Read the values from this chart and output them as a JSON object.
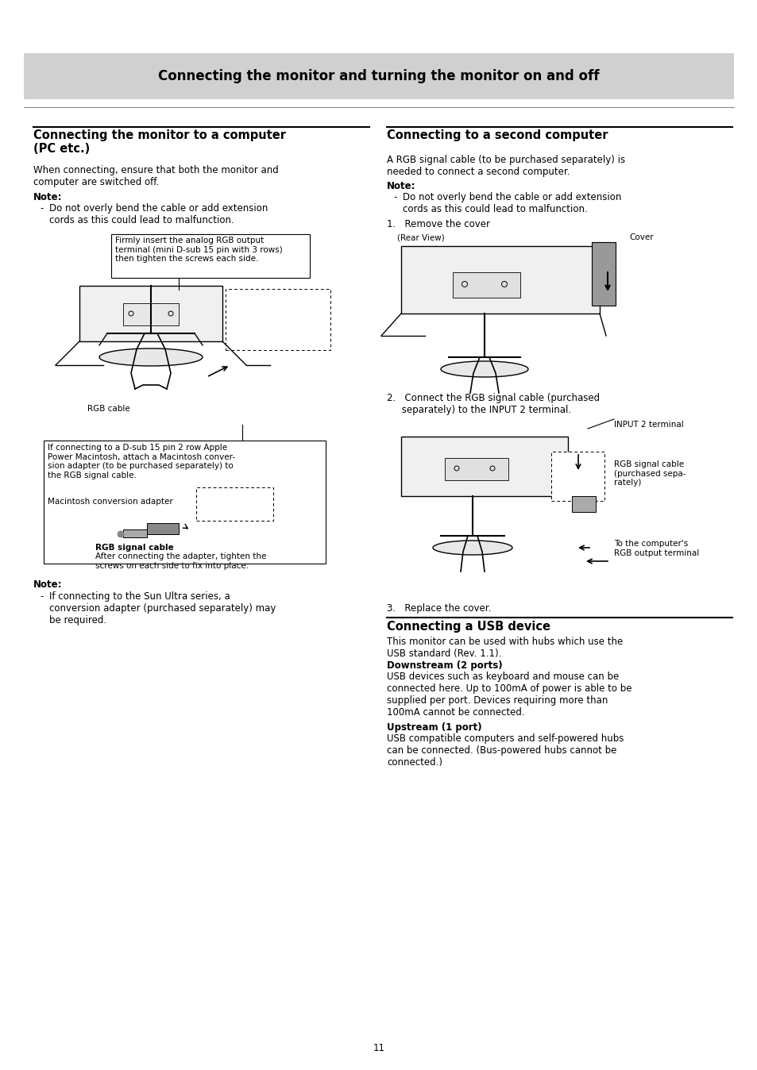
{
  "page_bg": "#ffffff",
  "header_bg": "#d0d0d0",
  "header_text": "Connecting the monitor and turning the monitor on and off",
  "header_fontsize": 12,
  "left_section_title": "Connecting the monitor to a computer\n(PC etc.)",
  "right_section_title": "Connecting to a second computer",
  "left_body1": "When connecting, ensure that both the monitor and\ncomputer are switched off.",
  "note_label": "Note:",
  "left_note1": "Do not overly bend the cable or add extension\ncords as this could lead to malfunction.",
  "right_note1": "Do not overly bend the cable or add extension\ncords as this could lead to malfunction.",
  "box1_text": "Firmly insert the analog RGB output\nterminal (mini D-sub 15 pin with 3 rows)\nthen tighten the screws each side.",
  "rgb_cable_label": "RGB cable",
  "box2_text": "If connecting to a D-sub 15 pin 2 row Apple\nPower Macintosh, attach a Macintosh conver-\nsion adapter (to be purchased separately) to\nthe RGB signal cable.",
  "mac_adapter_label": "Macintosh conversion adapter",
  "rgb_signal_label": "RGB signal cable",
  "rgb_after_text": "After connecting the adapter, tighten the\nscrews on each side to fix into place.",
  "left_note2_label": "Note:",
  "left_note2": "If connecting to the Sun Ultra series, a\nconversion adapter (purchased separately) may\nbe required.",
  "right_body1": "A RGB signal cable (to be purchased separately) is\nneeded to connect a second computer.",
  "right_note_label": "Note:",
  "step1": "1.   Remove the cover",
  "rear_view_label": "(Rear View)",
  "cover_label": "Cover",
  "step2": "2.   Connect the RGB signal cable (purchased\n     separately) to the INPUT 2 terminal.",
  "input2_label": "INPUT 2 terminal",
  "rgb_cable2_label": "RGB signal cable\n(purchased sepa-\nrately)",
  "computer_label": "To the computer's\nRGB output terminal",
  "step3": "3.   Replace the cover.",
  "usb_section_title": "Connecting a USB device",
  "usb_body": "This monitor can be used with hubs which use the\nUSB standard (Rev. 1.1).",
  "downstream_title": "Downstream (2 ports)",
  "downstream_body": "USB devices such as keyboard and mouse can be\nconnected here. Up to 100mA of power is able to be\nsupplied per port. Devices requiring more than\n100mA cannot be connected.",
  "upstream_title": "Upstream (1 port)",
  "upstream_body": "USB compatible computers and self-powered hubs\ncan be connected. (Bus-powered hubs cannot be\nconnected.)",
  "page_number": "11",
  "separator_color": "#000000",
  "text_color": "#000000",
  "body_fontsize": 8.5,
  "title_fontsize": 10.5,
  "small_fontsize": 7.5
}
